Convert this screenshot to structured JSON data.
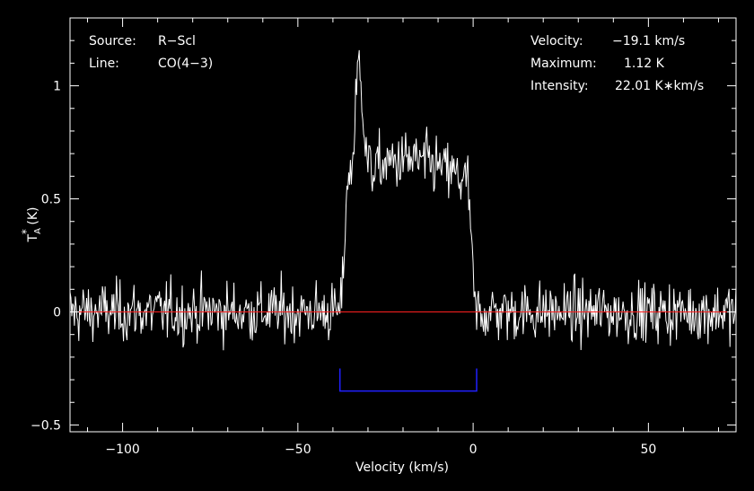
{
  "chart_data": {
    "type": "line",
    "xlabel": "Velocity (km/s)",
    "ylabel_main": "T",
    "ylabel_sub": "A",
    "ylabel_sup": "*",
    "ylabel_unit": " (K)",
    "xlim": [
      -115,
      75
    ],
    "ylim": [
      -0.53,
      1.3
    ],
    "xticks": [
      {
        "value": -100,
        "label": "−100"
      },
      {
        "value": -50,
        "label": "−50"
      },
      {
        "value": 0,
        "label": "0"
      },
      {
        "value": 50,
        "label": "50"
      }
    ],
    "yticks": [
      {
        "value": -0.5,
        "label": "−0.5"
      },
      {
        "value": 0,
        "label": "0"
      },
      {
        "value": 0.5,
        "label": "0.5"
      },
      {
        "value": 1,
        "label": "1"
      }
    ],
    "baseline": 0,
    "baseline_color": "#ff2020",
    "window": {
      "x_start": -38,
      "x_end": 1,
      "level": -0.35,
      "top": -0.25,
      "color": "#2020ff"
    },
    "noise_rms": 0.13,
    "profile": {
      "x_start": -37.5,
      "x_end": 0.5,
      "max_x": -32.5,
      "max": 1.12
    },
    "annotations": {
      "source_label": "Source:",
      "source_value": "R−Scl",
      "line_label": "Line:",
      "line_value": "CO(4−3)",
      "velocity_label": "Velocity:",
      "velocity_value": "−19.1 km/s",
      "maximum_label": "Maximum:",
      "maximum_value": "1.12 K",
      "intensity_label": "Intensity:",
      "intensity_value": "22.01 K∗km/s"
    }
  }
}
